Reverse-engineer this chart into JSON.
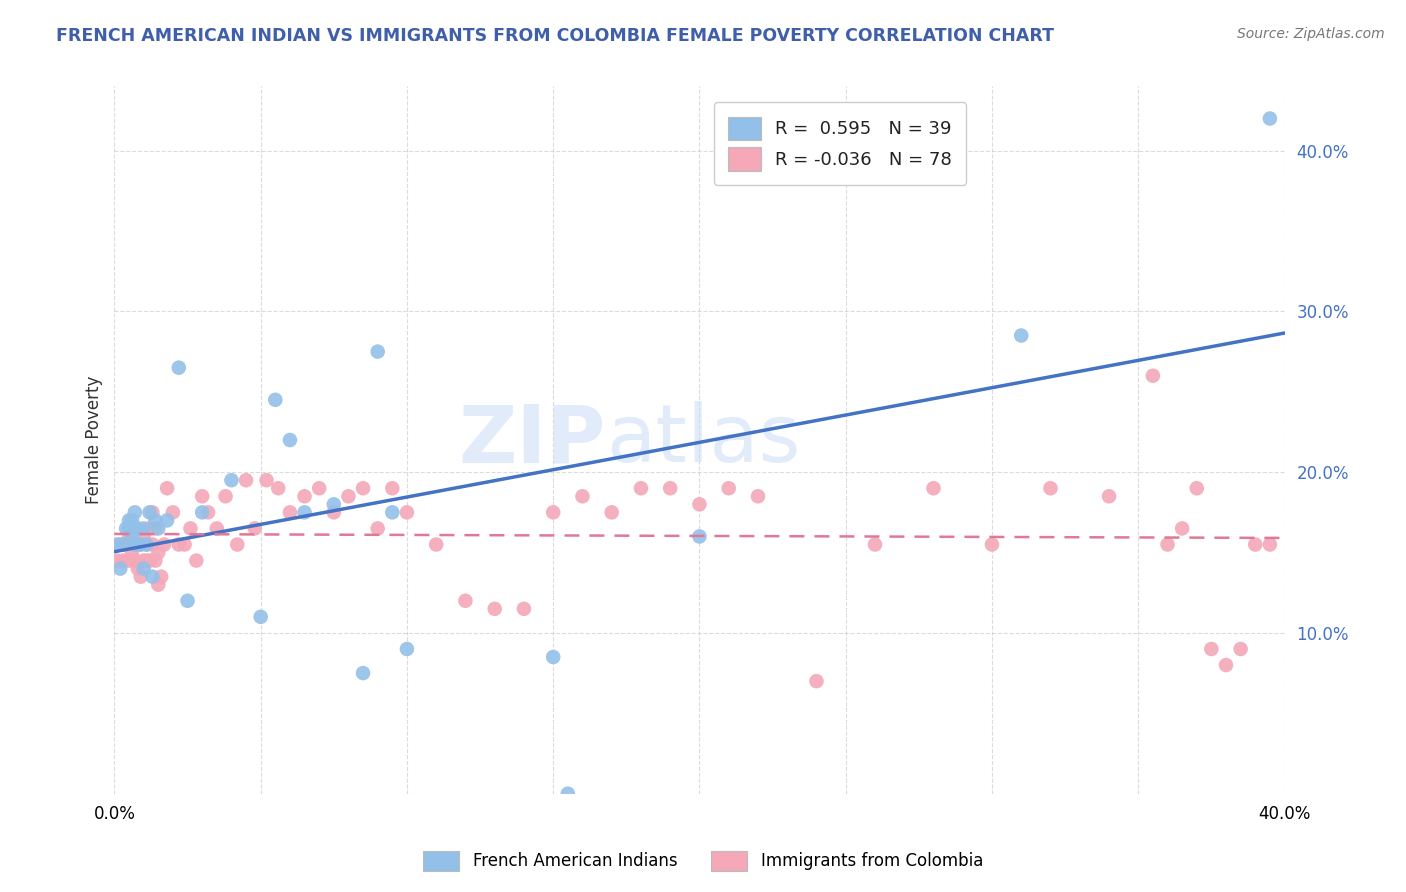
{
  "title": "FRENCH AMERICAN INDIAN VS IMMIGRANTS FROM COLOMBIA FEMALE POVERTY CORRELATION CHART",
  "source": "Source: ZipAtlas.com",
  "ylabel": "Female Poverty",
  "xlim": [
    0.0,
    0.4
  ],
  "ylim": [
    0.0,
    0.44
  ],
  "watermark_zip": "ZIP",
  "watermark_atlas": "atlas",
  "series1_name": "French American Indians",
  "series2_name": "Immigrants from Colombia",
  "series1_R": "0.595",
  "series1_N": "39",
  "series2_R": "-0.036",
  "series2_N": "78",
  "series1_color": "#92C0E8",
  "series2_color": "#F4A8B8",
  "line1_color": "#4472C4",
  "line2_color": "#E07898",
  "background_color": "#FFFFFF",
  "grid_color": "#CCCCCC",
  "title_color": "#3F5FAA",
  "series1_x": [
    0.001,
    0.002,
    0.003,
    0.004,
    0.005,
    0.005,
    0.006,
    0.006,
    0.007,
    0.007,
    0.008,
    0.008,
    0.009,
    0.01,
    0.01,
    0.011,
    0.012,
    0.013,
    0.014,
    0.015,
    0.018,
    0.022,
    0.025,
    0.03,
    0.04,
    0.05,
    0.055,
    0.06,
    0.065,
    0.075,
    0.085,
    0.09,
    0.095,
    0.1,
    0.15,
    0.155,
    0.2,
    0.31,
    0.395
  ],
  "series1_y": [
    0.155,
    0.14,
    0.155,
    0.165,
    0.17,
    0.165,
    0.16,
    0.17,
    0.155,
    0.175,
    0.155,
    0.165,
    0.155,
    0.14,
    0.165,
    0.155,
    0.175,
    0.135,
    0.17,
    0.165,
    0.17,
    0.265,
    0.12,
    0.175,
    0.195,
    0.11,
    0.245,
    0.22,
    0.175,
    0.18,
    0.075,
    0.275,
    0.175,
    0.09,
    0.085,
    0.0,
    0.16,
    0.285,
    0.42
  ],
  "series2_x": [
    0.001,
    0.002,
    0.003,
    0.004,
    0.005,
    0.005,
    0.006,
    0.007,
    0.007,
    0.008,
    0.008,
    0.009,
    0.009,
    0.01,
    0.01,
    0.011,
    0.011,
    0.012,
    0.012,
    0.013,
    0.013,
    0.014,
    0.014,
    0.015,
    0.015,
    0.016,
    0.017,
    0.018,
    0.02,
    0.022,
    0.024,
    0.026,
    0.028,
    0.03,
    0.032,
    0.035,
    0.038,
    0.042,
    0.045,
    0.048,
    0.052,
    0.056,
    0.06,
    0.065,
    0.07,
    0.075,
    0.08,
    0.085,
    0.09,
    0.095,
    0.1,
    0.11,
    0.12,
    0.13,
    0.14,
    0.15,
    0.16,
    0.17,
    0.18,
    0.19,
    0.2,
    0.21,
    0.22,
    0.24,
    0.26,
    0.28,
    0.3,
    0.32,
    0.34,
    0.355,
    0.36,
    0.365,
    0.37,
    0.375,
    0.38,
    0.385,
    0.39,
    0.395
  ],
  "series2_y": [
    0.145,
    0.155,
    0.145,
    0.155,
    0.145,
    0.16,
    0.15,
    0.145,
    0.155,
    0.14,
    0.155,
    0.155,
    0.135,
    0.145,
    0.16,
    0.145,
    0.155,
    0.145,
    0.165,
    0.155,
    0.175,
    0.145,
    0.165,
    0.13,
    0.15,
    0.135,
    0.155,
    0.19,
    0.175,
    0.155,
    0.155,
    0.165,
    0.145,
    0.185,
    0.175,
    0.165,
    0.185,
    0.155,
    0.195,
    0.165,
    0.195,
    0.19,
    0.175,
    0.185,
    0.19,
    0.175,
    0.185,
    0.19,
    0.165,
    0.19,
    0.175,
    0.155,
    0.12,
    0.115,
    0.115,
    0.175,
    0.185,
    0.175,
    0.19,
    0.19,
    0.18,
    0.19,
    0.185,
    0.07,
    0.155,
    0.19,
    0.155,
    0.19,
    0.185,
    0.26,
    0.155,
    0.165,
    0.19,
    0.09,
    0.08,
    0.09,
    0.155,
    0.155
  ]
}
